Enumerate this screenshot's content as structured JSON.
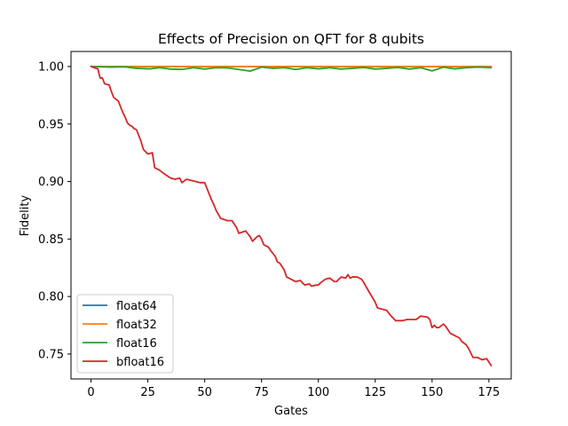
{
  "chart_data": {
    "type": "line",
    "title": "Effects of Precision on QFT for 8 qubits",
    "xlabel": "Gates",
    "ylabel": "Fidelity",
    "xlim": [
      -8.8,
      184.8
    ],
    "ylim": [
      0.7283,
      1.0131
    ],
    "xticks": [
      0,
      25,
      50,
      75,
      100,
      125,
      150,
      175
    ],
    "xtick_labels": [
      "0",
      "25",
      "50",
      "75",
      "100",
      "125",
      "150",
      "175"
    ],
    "yticks": [
      0.75,
      0.8,
      0.85,
      0.9,
      0.95,
      1.0
    ],
    "ytick_labels": [
      "0.75",
      "0.80",
      "0.85",
      "0.90",
      "0.95",
      "1.00"
    ],
    "grid": false,
    "legend_position": "lower-left",
    "series": [
      {
        "name": "float64",
        "color": "#1f77b4",
        "x": [
          0,
          176
        ],
        "y": [
          1.0,
          1.0
        ]
      },
      {
        "name": "float32",
        "color": "#ff7f0e",
        "x": [
          0,
          176
        ],
        "y": [
          1.0,
          1.0
        ]
      },
      {
        "name": "float16",
        "color": "#2ca02c",
        "x": [
          0,
          8,
          15,
          20,
          26,
          30,
          35,
          40,
          45,
          50,
          55,
          60,
          65,
          70,
          75,
          80,
          85,
          90,
          95,
          100,
          105,
          110,
          115,
          120,
          125,
          130,
          135,
          140,
          145,
          150,
          155,
          160,
          165,
          170,
          176
        ],
        "y": [
          1.0,
          0.9995,
          0.9997,
          0.9985,
          0.998,
          0.999,
          0.9978,
          0.9975,
          0.999,
          0.9978,
          0.999,
          0.9988,
          0.9975,
          0.996,
          0.9995,
          0.9985,
          0.999,
          0.9975,
          0.999,
          0.998,
          0.999,
          0.9978,
          0.9985,
          0.9992,
          0.9978,
          0.9985,
          0.9992,
          0.9978,
          0.999,
          0.9962,
          0.9995,
          0.998,
          0.999,
          0.9995,
          0.999
        ]
      },
      {
        "name": "bfloat16",
        "color": "#d62728",
        "x": [
          0,
          2,
          3,
          4,
          5,
          6,
          8,
          9,
          10,
          12,
          14,
          15,
          16,
          17,
          18,
          19,
          20,
          22,
          23,
          24,
          25,
          27,
          28,
          30,
          32,
          35,
          37,
          39,
          40,
          42,
          44,
          46,
          48,
          50,
          51,
          52,
          53,
          54,
          55,
          57,
          60,
          62,
          63,
          64,
          65,
          68,
          70,
          71,
          72,
          73,
          74,
          75,
          76,
          78,
          79,
          81,
          82,
          83,
          85,
          86,
          88,
          90,
          92,
          94,
          96,
          97,
          99,
          100,
          101,
          103,
          105,
          107,
          108,
          110,
          112,
          113,
          114,
          115,
          117,
          118,
          119,
          120,
          122,
          125,
          126,
          128,
          130,
          132,
          134,
          137,
          139,
          140,
          142,
          143,
          145,
          148,
          149,
          150,
          151,
          152,
          153,
          155,
          156,
          157,
          158,
          159,
          160,
          162,
          163,
          165,
          166,
          167,
          168,
          170,
          172,
          174,
          176
        ],
        "y": [
          1.0,
          0.9985,
          0.998,
          0.99,
          0.99,
          0.985,
          0.984,
          0.978,
          0.973,
          0.97,
          0.96,
          0.956,
          0.951,
          0.949,
          0.948,
          0.946,
          0.945,
          0.935,
          0.928,
          0.926,
          0.924,
          0.925,
          0.912,
          0.91,
          0.907,
          0.903,
          0.902,
          0.903,
          0.899,
          0.902,
          0.901,
          0.9,
          0.899,
          0.899,
          0.894,
          0.889,
          0.884,
          0.88,
          0.875,
          0.868,
          0.866,
          0.866,
          0.863,
          0.86,
          0.855,
          0.857,
          0.852,
          0.848,
          0.85,
          0.852,
          0.853,
          0.85,
          0.845,
          0.843,
          0.84,
          0.835,
          0.83,
          0.829,
          0.823,
          0.817,
          0.815,
          0.813,
          0.814,
          0.81,
          0.811,
          0.809,
          0.81,
          0.81,
          0.812,
          0.815,
          0.816,
          0.813,
          0.813,
          0.817,
          0.816,
          0.819,
          0.816,
          0.817,
          0.817,
          0.816,
          0.815,
          0.812,
          0.805,
          0.795,
          0.79,
          0.789,
          0.788,
          0.783,
          0.779,
          0.779,
          0.78,
          0.78,
          0.78,
          0.78,
          0.783,
          0.782,
          0.78,
          0.773,
          0.775,
          0.773,
          0.773,
          0.776,
          0.774,
          0.771,
          0.768,
          0.767,
          0.766,
          0.764,
          0.761,
          0.758,
          0.755,
          0.751,
          0.747,
          0.747,
          0.745,
          0.746,
          0.74
        ]
      }
    ]
  }
}
